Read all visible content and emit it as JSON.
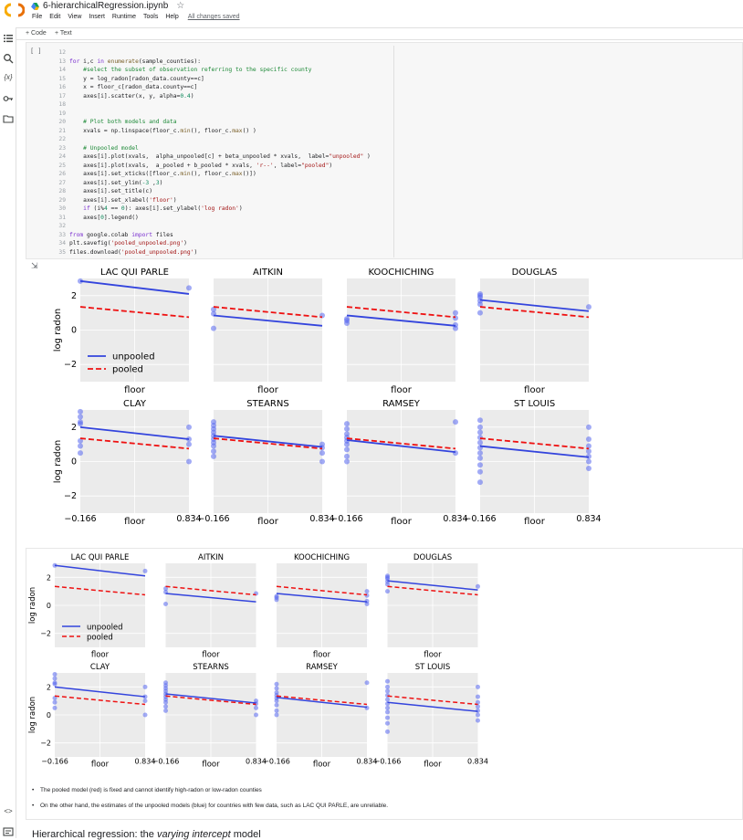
{
  "header": {
    "notebook_name": "6-hierarchicalRegression.ipynb",
    "menus": [
      "File",
      "Edit",
      "View",
      "Insert",
      "Runtime",
      "Tools",
      "Help"
    ],
    "saved_status": "All changes saved"
  },
  "toolbar": {
    "add_code": "+ Code",
    "add_text": "+ Text"
  },
  "left_rail": [
    "table-of-contents-icon",
    "search-icon",
    "variables-icon",
    "secrets-key-icon",
    "files-folder-icon",
    "code-snippets-icon",
    "terminal-icon"
  ],
  "code_cell": {
    "run_indicator": "[ ]",
    "lines": [
      {
        "n": "12",
        "text": ""
      },
      {
        "n": "13",
        "text": "for i,c in enumerate(sample_counties):"
      },
      {
        "n": "14",
        "text": "    #select the subset of observation referring to the specific county"
      },
      {
        "n": "15",
        "text": "    y = log_radon[radon_data.county==c]"
      },
      {
        "n": "16",
        "text": "    x = floor_c[radon_data.county==c]"
      },
      {
        "n": "17",
        "text": "    axes[i].scatter(x, y, alpha=0.4)"
      },
      {
        "n": "18",
        "text": ""
      },
      {
        "n": "19",
        "text": ""
      },
      {
        "n": "20",
        "text": "    # Plot both models and data"
      },
      {
        "n": "21",
        "text": "    xvals = np.linspace(floor_c.min(), floor_c.max() )"
      },
      {
        "n": "22",
        "text": ""
      },
      {
        "n": "23",
        "text": "    # Unpooled model"
      },
      {
        "n": "24",
        "text": "    axes[i].plot(xvals,  alpha_unpooled[c] + beta_unpooled * xvals,  label=\"unpooled\" )"
      },
      {
        "n": "25",
        "text": "    axes[i].plot(xvals,  a_pooled + b_pooled * xvals, 'r--', label=\"pooled\")"
      },
      {
        "n": "26",
        "text": "    axes[i].set_xticks([floor_c.min(), floor_c.max()])"
      },
      {
        "n": "27",
        "text": "    axes[i].set_ylim(-3 ,3)"
      },
      {
        "n": "28",
        "text": "    axes[i].set_title(c)"
      },
      {
        "n": "29",
        "text": "    axes[i].set_xlabel('floor')"
      },
      {
        "n": "30",
        "text": "    if (i%4 == 0): axes[i].set_ylabel('log radon')"
      },
      {
        "n": "31",
        "text": "    axes[0].legend()"
      },
      {
        "n": "32",
        "text": ""
      },
      {
        "n": "33",
        "text": "from google.colab import files"
      },
      {
        "n": "34",
        "text": "plt.savefig('pooled_unpooled.png')"
      },
      {
        "n": "35",
        "text": "files.download('pooled_unpooled.png')"
      }
    ]
  },
  "chart_data": [
    {
      "type": "scatter",
      "title": "",
      "ylabel": "log radon",
      "xlabel": "floor",
      "xticks": [
        "−0.166",
        "0.834"
      ],
      "xlim": [
        -0.166,
        0.834
      ],
      "ylim": [
        -3,
        3
      ],
      "yticks": [
        "−2",
        "0",
        "2"
      ],
      "grid": true,
      "legend_position": "lower-left",
      "legend": [
        "unpooled",
        "pooled"
      ],
      "series_colors": {
        "unpooled": "#3344dd",
        "pooled": "#ee1111",
        "points": "#5566ee"
      },
      "panels": [
        {
          "title": "LAC QUI PARLE",
          "unpooled": [
            2.85,
            2.1
          ],
          "pooled": [
            1.35,
            0.75
          ],
          "points": [
            [
              -0.166,
              2.85
            ],
            [
              0.834,
              2.45
            ]
          ]
        },
        {
          "title": "AITKIN",
          "unpooled": [
            0.85,
            0.25
          ],
          "pooled": [
            1.35,
            0.75
          ],
          "points": [
            [
              -0.166,
              0.1
            ],
            [
              -0.166,
              0.95
            ],
            [
              -0.166,
              1.2
            ],
            [
              0.834,
              0.85
            ]
          ]
        },
        {
          "title": "KOOCHICHING",
          "unpooled": [
            0.85,
            0.25
          ],
          "pooled": [
            1.35,
            0.75
          ],
          "points": [
            [
              -0.166,
              0.4
            ],
            [
              -0.166,
              0.55
            ],
            [
              -0.166,
              0.65
            ],
            [
              0.834,
              0.1
            ],
            [
              0.834,
              0.3
            ],
            [
              0.834,
              1.0
            ],
            [
              0.834,
              0.7
            ]
          ]
        },
        {
          "title": "DOUGLAS",
          "unpooled": [
            1.75,
            1.1
          ],
          "pooled": [
            1.35,
            0.75
          ],
          "points": [
            [
              -0.166,
              1.9
            ],
            [
              -0.166,
              2.1
            ],
            [
              -0.166,
              1.7
            ],
            [
              -0.166,
              1.5
            ],
            [
              -0.166,
              1.0
            ],
            [
              -0.166,
              2.0
            ],
            [
              0.834,
              1.35
            ]
          ]
        },
        {
          "title": "CLAY",
          "unpooled": [
            2.0,
            1.3
          ],
          "pooled": [
            1.35,
            0.75
          ],
          "points": [
            [
              -0.166,
              2.9
            ],
            [
              -0.166,
              2.6
            ],
            [
              -0.166,
              2.3
            ],
            [
              -0.166,
              2.2
            ],
            [
              -0.166,
              1.2
            ],
            [
              -0.166,
              0.5
            ],
            [
              -0.166,
              0.9
            ],
            [
              0.834,
              2.0
            ],
            [
              0.834,
              1.0
            ],
            [
              0.834,
              1.3
            ],
            [
              0.834,
              0.0
            ]
          ]
        },
        {
          "title": "STEARNS",
          "unpooled": [
            1.5,
            0.85
          ],
          "pooled": [
            1.35,
            0.75
          ],
          "points": [
            [
              -0.166,
              2.3
            ],
            [
              -0.166,
              2.1
            ],
            [
              -0.166,
              1.9
            ],
            [
              -0.166,
              1.7
            ],
            [
              -0.166,
              1.5
            ],
            [
              -0.166,
              1.3
            ],
            [
              -0.166,
              1.1
            ],
            [
              -0.166,
              0.9
            ],
            [
              -0.166,
              0.6
            ],
            [
              -0.166,
              0.3
            ],
            [
              0.834,
              1.0
            ],
            [
              0.834,
              0.8
            ],
            [
              0.834,
              0.5
            ],
            [
              0.834,
              0.0
            ]
          ]
        },
        {
          "title": "RAMSEY",
          "unpooled": [
            1.25,
            0.55
          ],
          "pooled": [
            1.35,
            0.75
          ],
          "points": [
            [
              -0.166,
              2.2
            ],
            [
              -0.166,
              1.9
            ],
            [
              -0.166,
              1.6
            ],
            [
              -0.166,
              1.4
            ],
            [
              -0.166,
              1.2
            ],
            [
              -0.166,
              1.0
            ],
            [
              -0.166,
              0.7
            ],
            [
              -0.166,
              0.3
            ],
            [
              -0.166,
              0.0
            ],
            [
              0.834,
              2.3
            ],
            [
              0.834,
              0.5
            ]
          ]
        },
        {
          "title": "ST LOUIS",
          "unpooled": [
            0.9,
            0.25
          ],
          "pooled": [
            1.35,
            0.75
          ],
          "points": [
            [
              -0.166,
              2.4
            ],
            [
              -0.166,
              2.0
            ],
            [
              -0.166,
              1.7
            ],
            [
              -0.166,
              1.4
            ],
            [
              -0.166,
              1.1
            ],
            [
              -0.166,
              0.8
            ],
            [
              -0.166,
              0.5
            ],
            [
              -0.166,
              0.2
            ],
            [
              -0.166,
              -0.2
            ],
            [
              -0.166,
              -0.6
            ],
            [
              -0.166,
              -1.2
            ],
            [
              0.834,
              2.0
            ],
            [
              0.834,
              1.3
            ],
            [
              0.834,
              0.9
            ],
            [
              0.834,
              0.6
            ],
            [
              0.834,
              0.3
            ],
            [
              0.834,
              0.0
            ],
            [
              0.834,
              -0.4
            ]
          ]
        }
      ]
    }
  ],
  "bullets": [
    "The pooled model (red) is fixed and cannot identify high-radon or low-radon counties",
    "On the other hand, the estimates of the unpooled models (blue) for countries with few data, such as LAC QUI PARLE, are unreliable."
  ],
  "section_title_prefix": "Hierarchical regression: the ",
  "section_title_italic": "varying intercept",
  "section_title_suffix": " model"
}
